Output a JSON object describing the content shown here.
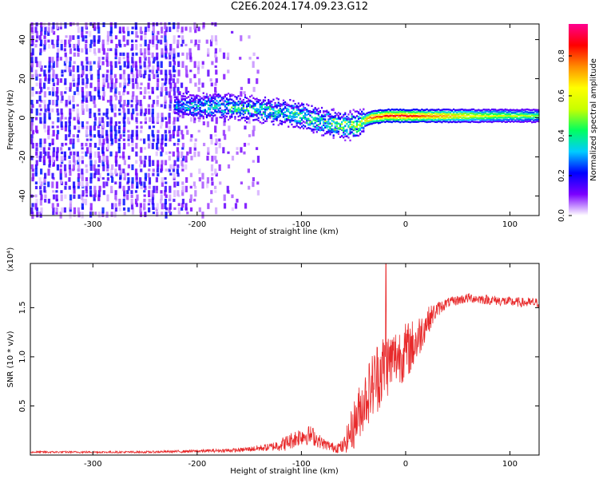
{
  "title": "C2E6.2024.174.09.23.G12",
  "chart_data": [
    {
      "type": "heatmap",
      "xlabel": "Height of straight line (km)",
      "ylabel": "Frequency (Hz)",
      "xlim": [
        -360,
        128
      ],
      "ylim": [
        -50,
        48
      ],
      "xticks": [
        -300,
        -200,
        -100,
        0,
        100
      ],
      "xtick_labels": [
        "-300",
        "-200",
        "-100",
        "0",
        "100"
      ],
      "yticks": [
        -40,
        -20,
        0,
        20,
        40
      ],
      "ytick_labels": [
        "-40",
        "-20",
        "0",
        "20",
        "40"
      ],
      "colorbar": {
        "label": "Normalized spectral amplitude",
        "range": [
          0,
          0.96
        ],
        "ticks": [
          0.0,
          0.2,
          0.4,
          0.6,
          0.8
        ],
        "tick_labels": [
          "0.0",
          "0.2",
          "0.4",
          "0.6",
          "0.8"
        ],
        "colormap": [
          "#ffffff",
          "#7b00ff",
          "#0000ff",
          "#00ccff",
          "#00ff60",
          "#c8ff00",
          "#ffff00",
          "#ff8c00",
          "#ff0000",
          "#ff0090"
        ]
      },
      "ridge": {
        "x": [
          -220,
          -200,
          -180,
          -160,
          -140,
          -120,
          -100,
          -80,
          -60,
          -45,
          -35,
          -20,
          0,
          20,
          50,
          80,
          110,
          128
        ],
        "frequency": [
          7,
          6,
          6,
          5,
          4,
          3,
          1,
          -2,
          -4,
          -3,
          0,
          1,
          1,
          1,
          1,
          1,
          1,
          1
        ],
        "amplitude": [
          0.35,
          0.4,
          0.42,
          0.45,
          0.45,
          0.45,
          0.48,
          0.5,
          0.55,
          0.6,
          0.8,
          0.9,
          0.92,
          0.8,
          0.7,
          0.6,
          0.55,
          0.5
        ]
      },
      "grid": false
    },
    {
      "type": "line",
      "xlabel": "Height of straight line (km)",
      "ylabel": "SNR (10 * v/v)",
      "yscale_note": "(x10⁴)",
      "xlim": [
        -360,
        128
      ],
      "ylim": [
        0,
        1.95
      ],
      "xticks": [
        -300,
        -200,
        -100,
        0,
        100
      ],
      "xtick_labels": [
        "-300",
        "-200",
        "-100",
        "0",
        "100"
      ],
      "yticks": [
        0.5,
        1.0,
        1.5
      ],
      "ytick_labels": [
        "0.5",
        "1.0",
        "1.5"
      ],
      "color": "#e8292a",
      "series": [
        {
          "x": [
            -360,
            -300,
            -250,
            -200,
            -160,
            -130,
            -115,
            -100,
            -90,
            -80,
            -70,
            -60,
            -50,
            -40,
            -30,
            -25,
            -20,
            -10,
            0,
            10,
            20,
            30,
            40,
            60,
            80,
            100,
            115,
            128
          ],
          "y": [
            0.03,
            0.03,
            0.03,
            0.04,
            0.05,
            0.08,
            0.12,
            0.2,
            0.2,
            0.12,
            0.08,
            0.08,
            0.3,
            0.55,
            0.75,
            0.85,
            0.9,
            1.0,
            1.05,
            1.15,
            1.35,
            1.48,
            1.55,
            1.6,
            1.58,
            1.56,
            1.55,
            1.55
          ],
          "noise": [
            0.01,
            0.01,
            0.01,
            0.015,
            0.02,
            0.04,
            0.08,
            0.1,
            0.1,
            0.06,
            0.05,
            0.07,
            0.25,
            0.3,
            0.35,
            0.4,
            0.35,
            0.3,
            0.3,
            0.25,
            0.15,
            0.08,
            0.05,
            0.05,
            0.05,
            0.05,
            0.05,
            0.05
          ],
          "spike": {
            "x": -19,
            "y": 1.95
          }
        }
      ],
      "grid": false
    }
  ]
}
